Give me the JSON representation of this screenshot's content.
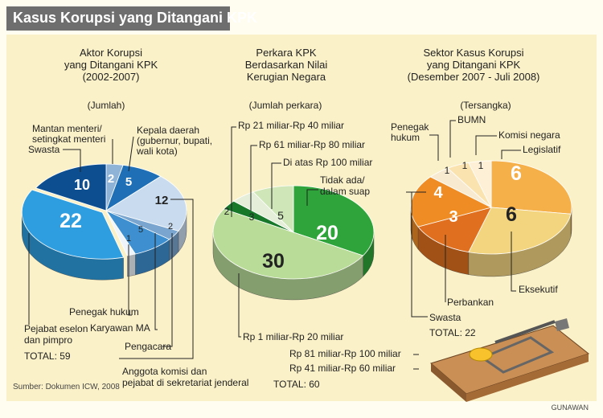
{
  "title": "Kasus Korupsi yang Ditangani KPK",
  "source": "Sumber: Dokumen ICW, 2008",
  "credit": "GUNAWAN",
  "chart_data": [
    {
      "type": "pie",
      "title_lines": [
        "Aktor Korupsi",
        "yang Ditangani KPK",
        "(2002-2007)"
      ],
      "unit": "(Jumlah)",
      "total": "TOTAL: 59",
      "slices": [
        {
          "label": "Mantan menteri/ setingkat menteri",
          "value": 2,
          "color": "#8fb3d6"
        },
        {
          "label": "Kepala daerah (gubernur, bupati, wali kota)",
          "value": 5,
          "color": "#1e6fb5"
        },
        {
          "label": "Anggota komisi dan pejabat di sekretariat jenderal",
          "value": 12,
          "color": "#c9dcef"
        },
        {
          "label": "Pengacara",
          "value": 2,
          "color": "#7aa5cf"
        },
        {
          "label": "Karyawan MA",
          "value": 5,
          "color": "#3d8fd0"
        },
        {
          "label": "Penegak hukum",
          "value": 1,
          "color": "#eef4fa"
        },
        {
          "label": "Pejabat eselon dan pimpro",
          "value": 22,
          "color": "#2f9ee0"
        },
        {
          "label": "Swasta",
          "value": 10,
          "color": "#0d4e91"
        }
      ]
    },
    {
      "type": "pie",
      "title_lines": [
        "Perkara KPK",
        "Berdasarkan Nilai",
        "Kerugian Negara"
      ],
      "unit": "(Jumlah perkara)",
      "total": "TOTAL: 60",
      "slices": [
        {
          "label": "Tidak ada/ dalam suap",
          "value": 20,
          "color": "#2ea43a"
        },
        {
          "label": "Rp 1 miliar-Rp 20 miliar",
          "value": 30,
          "color": "#b9dc98"
        },
        {
          "label": "Rp 81 miliar-Rp 100 miliar",
          "value": 0,
          "color": "#2ea43a"
        },
        {
          "label": "Rp 41 miliar-Rp 60 miliar",
          "value": 0,
          "color": "#2ea43a"
        },
        {
          "label": "Rp 21 miliar-Rp 40 miliar",
          "value": 2,
          "color": "#18782a"
        },
        {
          "label": "Rp 61 miliar-Rp 80 miliar",
          "value": 3,
          "color": "#e4eed8"
        },
        {
          "label": "Di atas Rp 100 miliar",
          "value": 5,
          "color": "#cfe6b8"
        }
      ]
    },
    {
      "type": "pie",
      "title_lines": [
        "Sektor Kasus Korupsi",
        "yang Ditangani KPK",
        "(Desember 2007 - Juli 2008)"
      ],
      "unit": "(Tersangka)",
      "total": "TOTAL: 22",
      "slices": [
        {
          "label": "Legislatif",
          "value": 6,
          "color": "#f6b04a"
        },
        {
          "label": "Eksekutif",
          "value": 6,
          "color": "#f3d580"
        },
        {
          "label": "Perbankan",
          "value": 3,
          "color": "#e0701f"
        },
        {
          "label": "Swasta",
          "value": 4,
          "color": "#ef8c24"
        },
        {
          "label": "Penegak hukum",
          "value": 1,
          "color": "#f8ead0"
        },
        {
          "label": "BUMN",
          "value": 1,
          "color": "#fbe3b0"
        },
        {
          "label": "Komisi negara",
          "value": 1,
          "color": "#fdf0d6"
        }
      ]
    }
  ]
}
